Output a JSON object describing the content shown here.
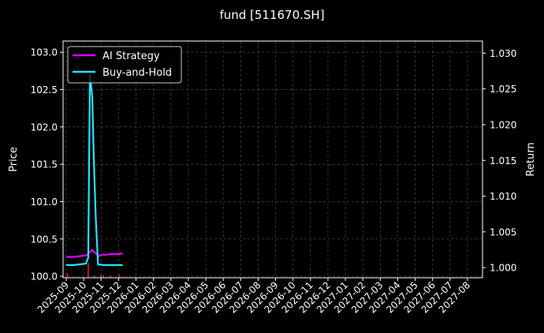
{
  "chart_data": {
    "type": "line",
    "title": "fund [511670.SH]",
    "xlabel": "",
    "ylabel": "Price",
    "ylabel_right": "Return",
    "background": "#000000",
    "grid": true,
    "legend_position": "upper-left",
    "x_ticks": [
      "2025-09",
      "2025-10",
      "2025-11",
      "2025-12",
      "2026-01",
      "2026-02",
      "2026-03",
      "2026-04",
      "2026-05",
      "2026-06",
      "2026-07",
      "2026-08",
      "2026-09",
      "2026-10",
      "2026-11",
      "2026-12",
      "2027-01",
      "2027-02",
      "2027-03",
      "2027-04",
      "2027-05",
      "2027-06",
      "2027-07",
      "2027-08"
    ],
    "y_left": {
      "range": [
        99.98,
        103.15
      ],
      "ticks": [
        "100.0",
        "100.5",
        "101.0",
        "101.5",
        "102.0",
        "102.5",
        "103.0"
      ]
    },
    "y_right": {
      "range": [
        0.99858,
        1.0317
      ],
      "ticks": [
        "1.000",
        "1.005",
        "1.010",
        "1.015",
        "1.020",
        "1.025",
        "1.030"
      ]
    },
    "series": [
      {
        "name": "AI Strategy",
        "axis": "right",
        "color": "#dd00ff",
        "points": [
          [
            "2025-09-01",
            1.0015
          ],
          [
            "2025-09-15",
            1.0015
          ],
          [
            "2025-09-25",
            1.0016
          ],
          [
            "2025-10-05",
            1.0017
          ],
          [
            "2025-10-10",
            1.002
          ],
          [
            "2025-10-15",
            1.0025
          ],
          [
            "2025-10-22",
            1.002
          ],
          [
            "2025-10-27",
            1.0016
          ],
          [
            "2025-11-01",
            1.0018
          ],
          [
            "2025-11-10",
            1.0018
          ],
          [
            "2025-11-20",
            1.0019
          ],
          [
            "2025-11-30",
            1.0019
          ],
          [
            "2025-12-08",
            1.002
          ]
        ]
      },
      {
        "name": "Buy-and-Hold",
        "axis": "left",
        "color": "#22e5ff",
        "points": [
          [
            "2025-09-01",
            100.15
          ],
          [
            "2025-09-15",
            100.15
          ],
          [
            "2025-09-25",
            100.16
          ],
          [
            "2025-10-05",
            100.17
          ],
          [
            "2025-10-09",
            100.25
          ],
          [
            "2025-10-12",
            102.7
          ],
          [
            "2025-10-16",
            102.4
          ],
          [
            "2025-10-19",
            101.5
          ],
          [
            "2025-10-22",
            100.8
          ],
          [
            "2025-10-26",
            100.16
          ],
          [
            "2025-11-05",
            100.15
          ],
          [
            "2025-11-20",
            100.15
          ],
          [
            "2025-12-08",
            100.15
          ]
        ]
      }
    ],
    "signals": {
      "color": "#ff2020",
      "dates": [
        "2025-09-03",
        "2025-10-09",
        "2025-10-20",
        "2025-10-31",
        "2025-11-05",
        "2025-11-17",
        "2025-12-02"
      ],
      "heights": [
        0.06,
        0.2,
        0.03,
        0.04,
        0.03,
        0.03,
        0.04
      ]
    }
  }
}
